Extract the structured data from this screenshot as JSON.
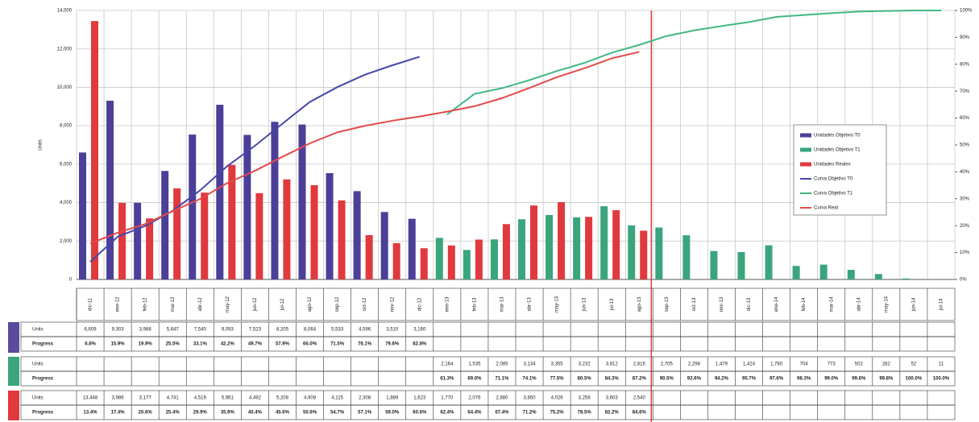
{
  "chart_data": {
    "type": "bar",
    "y_axis_label": "Units",
    "categories": [
      "dic-11",
      "ene-12",
      "feb-12",
      "mar-12",
      "abr-12",
      "may-12",
      "jun-12",
      "jul-12",
      "ago-12",
      "sep-12",
      "oct-12",
      "nov-12",
      "dic-12",
      "ene-13",
      "feb-13",
      "mar-13",
      "abr-13",
      "may-13",
      "jun-13",
      "jul-13",
      "ago-13",
      "sep-13",
      "oct-13",
      "nov-13",
      "dic-13",
      "ene-14",
      "feb-14",
      "mar-14",
      "abr-14",
      "may-14",
      "jun-14",
      "jul-14"
    ],
    "ylim": [
      0,
      14000
    ],
    "yticks": [
      0,
      {
        "value": 2000,
        "label": "2,000"
      },
      {
        "value": 4000,
        "label": "4,000"
      },
      {
        "value": 6000,
        "label": "6,000"
      },
      {
        "value": 8000,
        "label": "8,000"
      },
      {
        "value": 10000,
        "label": "10,000"
      },
      {
        "value": 12000,
        "label": "12,000"
      },
      {
        "value": 14000,
        "label": "14,000"
      }
    ],
    "y2lim": [
      0,
      100
    ],
    "y2ticks": [
      {
        "value": 0,
        "label": "0%"
      },
      {
        "value": 10,
        "label": "10%"
      },
      {
        "value": 20,
        "label": "20%"
      },
      {
        "value": 30,
        "label": "30%"
      },
      {
        "value": 40,
        "label": "40%"
      },
      {
        "value": 50,
        "label": "50%"
      },
      {
        "value": 60,
        "label": "60%"
      },
      {
        "value": 70,
        "label": "70%"
      },
      {
        "value": 80,
        "label": "80%"
      },
      {
        "value": 90,
        "label": "90%"
      },
      {
        "value": 100,
        "label": "100%"
      }
    ],
    "grid": true,
    "legend": "right",
    "table_row_labels": [
      "Units",
      "Progress"
    ],
    "series": [
      {
        "name": "Unidades Objetivo T0",
        "type": "bar",
        "color": "#4b3f99",
        "values": [
          6609,
          9303,
          3988,
          5647,
          7540,
          9093,
          7523,
          8205,
          8064,
          5533,
          4596,
          3510,
          3160,
          null,
          null,
          null,
          null,
          null,
          null,
          null,
          null,
          null,
          null,
          null,
          null,
          null,
          null,
          null,
          null,
          null,
          null,
          null
        ],
        "value_labels": [
          "6,609",
          "9,303",
          "3,988",
          "5,647",
          "7,540",
          "9,093",
          "7,523",
          "8,205",
          "8,064",
          "5,533",
          "4,596",
          "3,510",
          "3,160",
          null,
          null,
          null,
          null,
          null,
          null,
          null,
          null,
          null,
          null,
          null,
          null,
          null,
          null,
          null,
          null,
          null,
          null,
          null
        ]
      },
      {
        "name": "Unidades Objetivo T1",
        "type": "bar",
        "color": "#3aa57d",
        "values": [
          null,
          null,
          null,
          null,
          null,
          null,
          null,
          null,
          null,
          null,
          null,
          null,
          null,
          2164,
          1535,
          2085,
          3134,
          3355,
          3232,
          3812,
          2816,
          2705,
          2298,
          1479,
          1424,
          1780,
          704,
          773,
          502,
          282,
          52,
          11
        ],
        "value_labels": [
          null,
          null,
          null,
          null,
          null,
          null,
          null,
          null,
          null,
          null,
          null,
          null,
          null,
          "2,164",
          "1,535",
          "2,085",
          "3,134",
          "3,355",
          "3,232",
          "3,812",
          "2,816",
          "2,705",
          "2,298",
          "1,479",
          "1,424",
          "1,780",
          "704",
          "773",
          "502",
          "282",
          "52",
          "11"
        ]
      },
      {
        "name": "Unidades Reales",
        "type": "bar",
        "color": "#e0393e",
        "values": [
          13448,
          3986,
          3177,
          4741,
          4519,
          5961,
          4492,
          5208,
          4908,
          4115,
          2308,
          1889,
          1623,
          1770,
          2076,
          2880,
          3850,
          4026,
          3258,
          3603,
          2540,
          null,
          null,
          null,
          null,
          null,
          null,
          null,
          null,
          null,
          null,
          null
        ],
        "value_labels": [
          "13,448",
          "3,986",
          "3,177",
          "4,741",
          "4,519",
          "5,961",
          "4,492",
          "5,208",
          "4,908",
          "4,115",
          "2,308",
          "1,889",
          "1,623",
          "1,770",
          "2,076",
          "2,880",
          "3,850",
          "4,026",
          "3,258",
          "3,603",
          "2,540",
          null,
          null,
          null,
          null,
          null,
          null,
          null,
          null,
          null,
          null,
          null
        ]
      },
      {
        "name": "Curva Objetivo T0",
        "type": "line",
        "axis": "y2",
        "color": "#4747a8",
        "values": [
          6.6,
          15.9,
          19.9,
          25.5,
          33.1,
          42.2,
          49.7,
          57.9,
          66.0,
          71.5,
          76.1,
          79.6,
          82.8,
          null,
          null,
          null,
          null,
          null,
          null,
          null,
          null,
          null,
          null,
          null,
          null,
          null,
          null,
          null,
          null,
          null,
          null,
          null
        ],
        "value_labels": [
          "6.6%",
          "15.9%",
          "19.9%",
          "25.5%",
          "33.1%",
          "42.2%",
          "49.7%",
          "57.9%",
          "66.0%",
          "71.5%",
          "76.1%",
          "79.6%",
          "82.8%",
          null,
          null,
          null,
          null,
          null,
          null,
          null,
          null,
          null,
          null,
          null,
          null,
          null,
          null,
          null,
          null,
          null,
          null,
          null
        ]
      },
      {
        "name": "Curva Objetivo T1",
        "type": "line",
        "axis": "y2",
        "color": "#42b883",
        "values": [
          null,
          null,
          null,
          null,
          null,
          null,
          null,
          null,
          null,
          null,
          null,
          null,
          null,
          61.3,
          69.0,
          71.1,
          74.1,
          77.5,
          80.5,
          84.3,
          87.2,
          90.5,
          92.6,
          94.2,
          95.7,
          97.6,
          98.3,
          99.0,
          99.6,
          99.8,
          100.0,
          100.0
        ],
        "value_labels": [
          null,
          null,
          null,
          null,
          null,
          null,
          null,
          null,
          null,
          null,
          null,
          null,
          null,
          "61.3%",
          "69.0%",
          "71.1%",
          "74.1%",
          "77.5%",
          "80.5%",
          "84.3%",
          "87.2%",
          "90.5%",
          "92.6%",
          "94.2%",
          "95.7%",
          "97.6%",
          "98.3%",
          "99.0%",
          "99.6%",
          "99.8%",
          "100.0%",
          "100.0%"
        ]
      },
      {
        "name": "Curva Real",
        "type": "line",
        "axis": "y2",
        "color": "#e34a4a",
        "values": [
          13.4,
          17.4,
          20.6,
          25.4,
          29.9,
          35.9,
          40.4,
          45.6,
          50.6,
          54.7,
          57.1,
          59.0,
          60.6,
          62.4,
          64.4,
          67.4,
          71.2,
          75.2,
          78.5,
          82.2,
          84.6,
          null,
          null,
          null,
          null,
          null,
          null,
          null,
          null,
          null,
          null,
          null
        ],
        "value_labels": [
          "13.4%",
          "17.4%",
          "20.6%",
          "25.4%",
          "29.9%",
          "35.9%",
          "40.4%",
          "45.6%",
          "50.6%",
          "54.7%",
          "57.1%",
          "59.0%",
          "60.6%",
          "62.4%",
          "64.4%",
          "67.4%",
          "71.2%",
          "75.2%",
          "78.5%",
          "82.2%",
          "84.6%",
          null,
          null,
          null,
          null,
          null,
          null,
          null,
          null,
          null,
          null,
          null
        ]
      }
    ]
  }
}
